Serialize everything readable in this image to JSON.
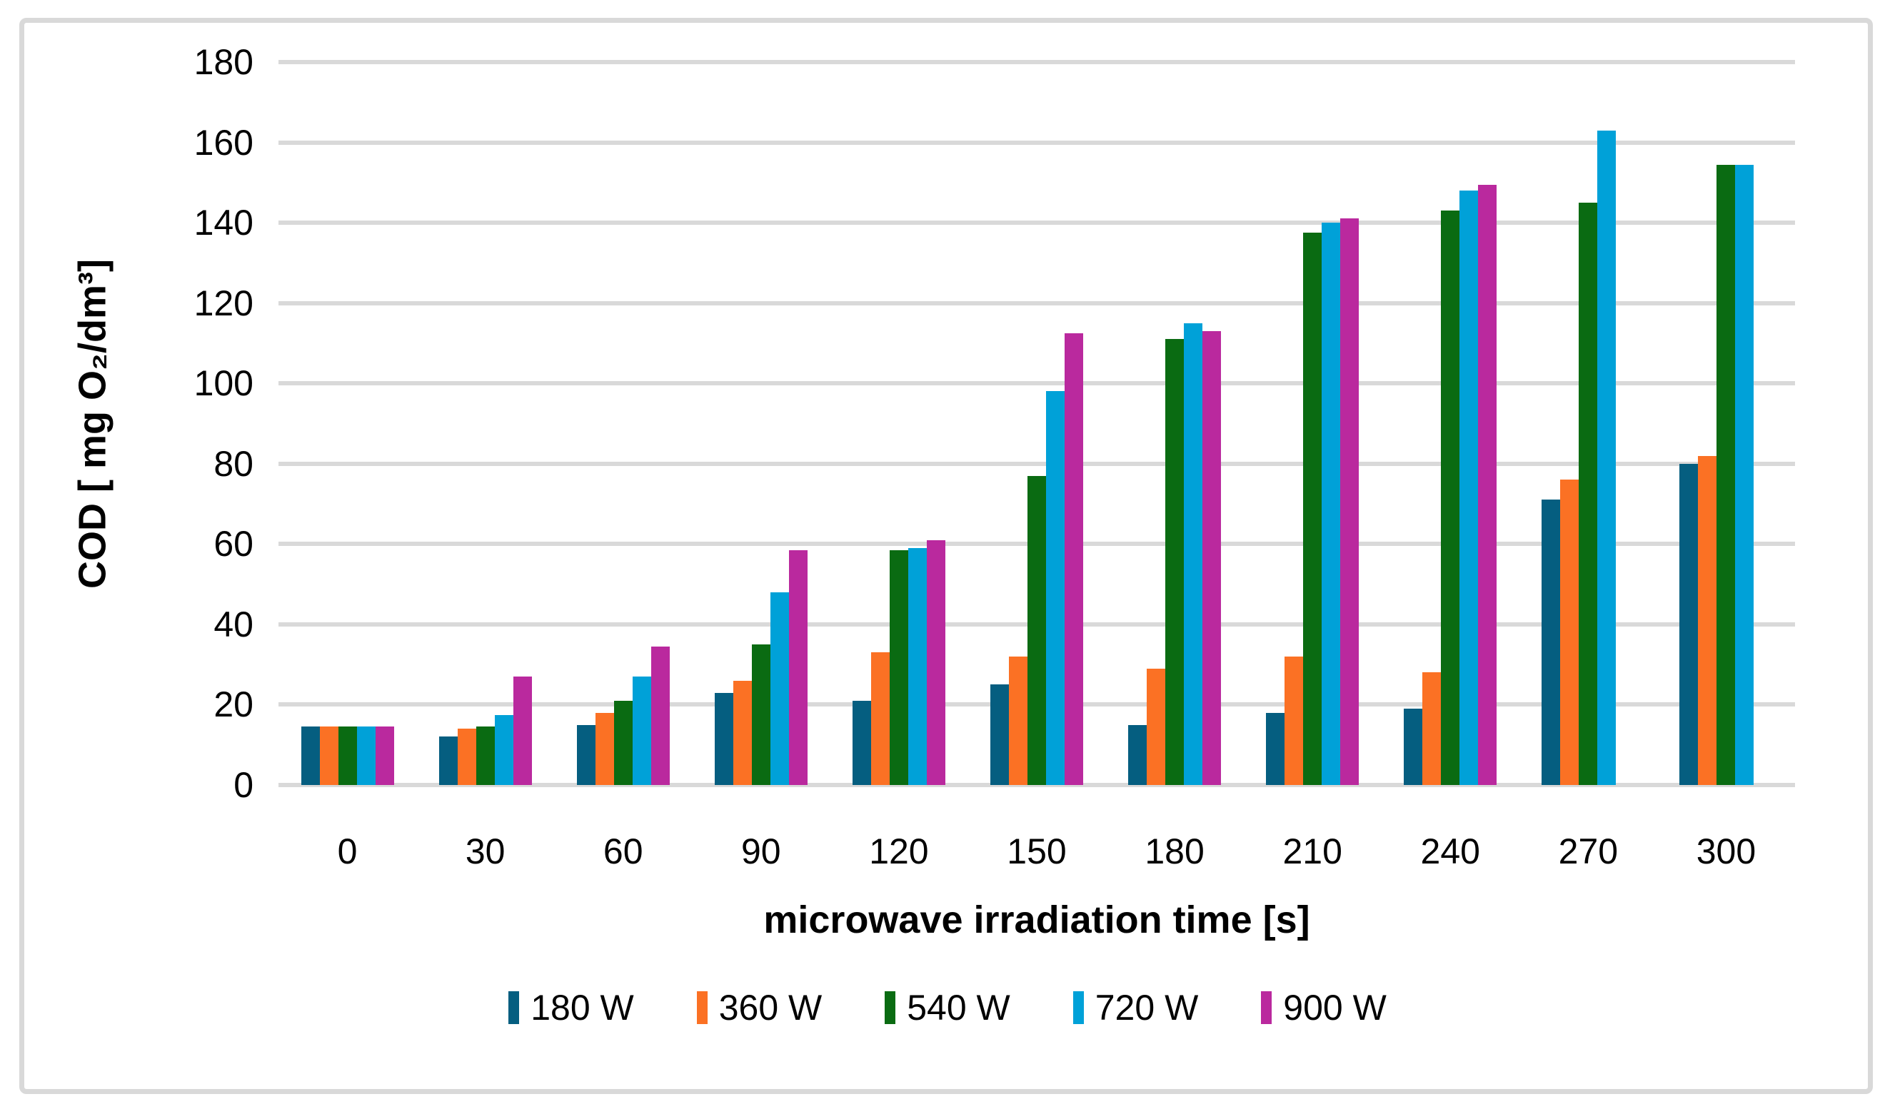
{
  "frame": {
    "background": "#FFFFFF",
    "border_color": "#D9D9D9",
    "gridline_color": "#D9D9D9"
  },
  "chart_data": {
    "type": "bar",
    "title": "",
    "xlabel": "microwave irradiation time [s]",
    "ylabel": "COD [ mg O₂/dm³]",
    "categories": [
      0,
      30,
      60,
      90,
      120,
      150,
      180,
      210,
      240,
      270,
      300
    ],
    "series": [
      {
        "name": "180 W",
        "color": "#055E80",
        "values": [
          14.5,
          12,
          15,
          23,
          21,
          25,
          15,
          18,
          19,
          71,
          80
        ]
      },
      {
        "name": "360 W",
        "color": "#FB7124",
        "values": [
          14.5,
          14,
          18,
          26,
          33,
          32,
          29,
          32,
          28,
          76,
          82
        ]
      },
      {
        "name": "540 W",
        "color": "#0A6B12",
        "values": [
          14.5,
          14.5,
          21,
          35,
          58.5,
          77,
          111,
          137.5,
          143,
          145,
          154.5
        ]
      },
      {
        "name": "720 W",
        "color": "#00A1D8",
        "values": [
          14.5,
          17.5,
          27,
          48,
          59,
          98,
          115,
          140,
          148,
          163,
          154.5
        ]
      },
      {
        "name": "900 W",
        "color": "#BA299E",
        "values": [
          14.5,
          27,
          34.5,
          58.5,
          61,
          112.5,
          113,
          141,
          149.5,
          null,
          null
        ]
      }
    ],
    "ylim": [
      0,
      180
    ],
    "ytick_step": 20,
    "grid": "horizontal-only",
    "legend_position": "bottom"
  }
}
